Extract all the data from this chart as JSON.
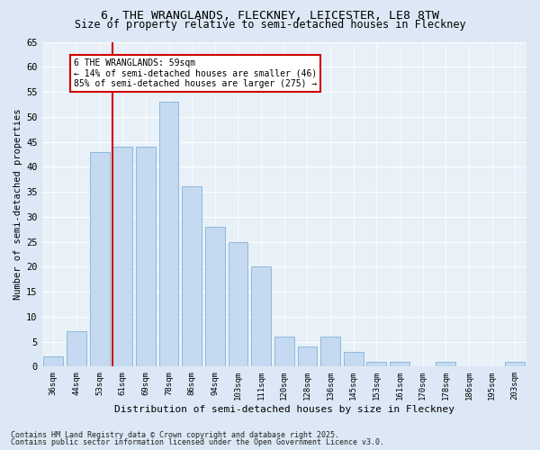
{
  "title1": "6, THE WRANGLANDS, FLECKNEY, LEICESTER, LE8 8TW",
  "title2": "Size of property relative to semi-detached houses in Fleckney",
  "xlabel": "Distribution of semi-detached houses by size in Fleckney",
  "ylabel": "Number of semi-detached properties",
  "categories": [
    "36sqm",
    "44sqm",
    "53sqm",
    "61sqm",
    "69sqm",
    "78sqm",
    "86sqm",
    "94sqm",
    "103sqm",
    "111sqm",
    "120sqm",
    "128sqm",
    "136sqm",
    "145sqm",
    "153sqm",
    "161sqm",
    "170sqm",
    "178sqm",
    "186sqm",
    "195sqm",
    "203sqm"
  ],
  "values": [
    2,
    7,
    43,
    44,
    44,
    53,
    36,
    28,
    25,
    20,
    6,
    4,
    6,
    3,
    1,
    1,
    0,
    1,
    0,
    0,
    1
  ],
  "bar_color": "#c5d9f0",
  "bar_edge_color": "#7fb3d9",
  "vline_color": "#cc0000",
  "annotation_title": "6 THE WRANGLANDS: 59sqm",
  "annotation_line1": "← 14% of semi-detached houses are smaller (46)",
  "annotation_line2": "85% of semi-detached houses are larger (275) →",
  "annotation_box_color": "#cc0000",
  "ylim": [
    0,
    65
  ],
  "yticks": [
    0,
    5,
    10,
    15,
    20,
    25,
    30,
    35,
    40,
    45,
    50,
    55,
    60,
    65
  ],
  "fig_bg_color": "#dce8f5",
  "ax_bg_color": "#e8f0f8",
  "grid_color": "#ffffff",
  "footnote1": "Contains HM Land Registry data © Crown copyright and database right 2025.",
  "footnote2": "Contains public sector information licensed under the Open Government Licence v3.0."
}
